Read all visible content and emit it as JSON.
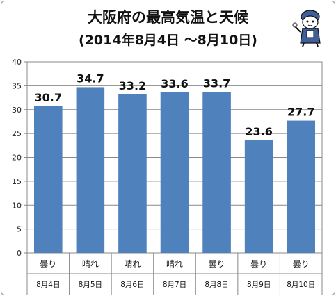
{
  "chart_data": {
    "type": "bar",
    "title": "大阪府の最高気温と天候",
    "subtitle": "(2014年8月4日 〜8月10日)",
    "categories": [
      "8月4日",
      "8月5日",
      "8月6日",
      "8月7日",
      "8月8日",
      "8月9日",
      "8月10日"
    ],
    "weather": [
      "曇り",
      "晴れ",
      "晴れ",
      "晴れ",
      "曇り",
      "曇り",
      "曇り"
    ],
    "values": [
      30.7,
      34.7,
      33.2,
      33.6,
      33.7,
      23.6,
      27.7
    ],
    "value_labels": [
      "30.7",
      "34.7",
      "33.2",
      "33.6",
      "33.7",
      "23.6",
      "27.7"
    ],
    "ylim": [
      0,
      40
    ],
    "yticks": [
      0,
      5,
      10,
      15,
      20,
      25,
      30,
      35,
      40
    ],
    "grid": true,
    "bar_color": "#4f81bd"
  }
}
